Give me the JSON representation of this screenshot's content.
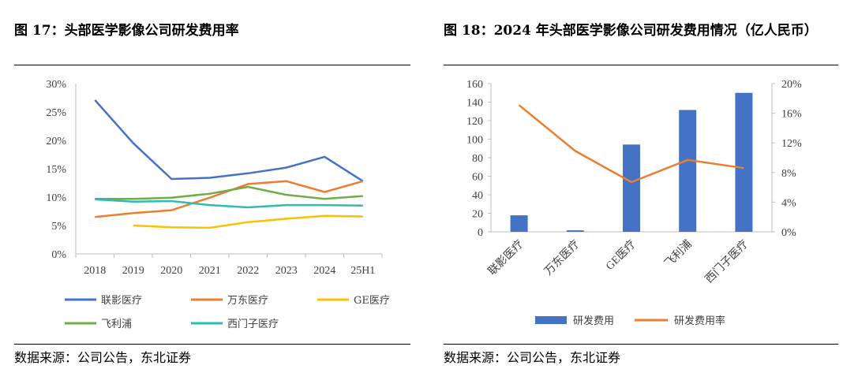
{
  "charts": [
    {
      "title": "图 17：头部医学影像公司研发费用率",
      "source": "数据来源：公司公告，东北证券",
      "chart_data": {
        "type": "line",
        "categories": [
          "2018",
          "2019",
          "2020",
          "2021",
          "2022",
          "2023",
          "2024",
          "25H1"
        ],
        "y_ticks": [
          "0%",
          "5%",
          "10%",
          "15%",
          "20%",
          "25%",
          "30%"
        ],
        "ylim": [
          0,
          30
        ],
        "legend_position": "bottom",
        "series": [
          {
            "name": "联影医疗",
            "color": "#4472C4",
            "values": [
              27.1,
              19.5,
              13.2,
              13.4,
              14.2,
              15.2,
              17.1,
              12.8
            ]
          },
          {
            "name": "万东医疗",
            "color": "#ED7D31",
            "values": [
              6.5,
              7.2,
              7.7,
              9.9,
              12.3,
              12.8,
              10.9,
              12.8
            ]
          },
          {
            "name": "GE医疗",
            "color": "#FFC000",
            "values": [
              null,
              5.0,
              4.7,
              4.6,
              5.6,
              6.2,
              6.7,
              6.6
            ]
          },
          {
            "name": "飞利浦",
            "color": "#70AD47",
            "values": [
              9.7,
              9.7,
              9.9,
              10.6,
              11.8,
              10.4,
              9.7,
              10.2
            ]
          },
          {
            "name": "西门子医疗",
            "color": "#2EBDB3",
            "values": [
              9.6,
              9.2,
              9.3,
              8.6,
              8.2,
              8.6,
              8.6,
              8.5
            ]
          }
        ]
      }
    },
    {
      "title": "图 18：2024 年头部医学影像公司研发费用情况（亿人民币）",
      "source": "数据来源：公司公告，东北证券",
      "chart_data": {
        "type": "bar",
        "categories": [
          "联影医疗",
          "万东医疗",
          "GE医疗",
          "飞利浦",
          "西门子医疗"
        ],
        "y_ticks": [
          "0",
          "20",
          "40",
          "60",
          "80",
          "100",
          "120",
          "140",
          "160"
        ],
        "ylim": [
          0,
          160
        ],
        "y2_ticks": [
          "0%",
          "4%",
          "8%",
          "12%",
          "16%",
          "20%"
        ],
        "y2lim": [
          0,
          20
        ],
        "legend_position": "bottom",
        "series": [
          {
            "name": "研发费用",
            "type": "bar",
            "axis": "left",
            "color": "#4472C4",
            "values": [
              17.8,
              1.6,
              94.2,
              131.5,
              150.0
            ]
          },
          {
            "name": "研发费用率",
            "type": "line",
            "axis": "right",
            "color": "#ED7D31",
            "values": [
              17.1,
              10.9,
              6.7,
              9.7,
              8.6
            ]
          }
        ]
      }
    }
  ]
}
